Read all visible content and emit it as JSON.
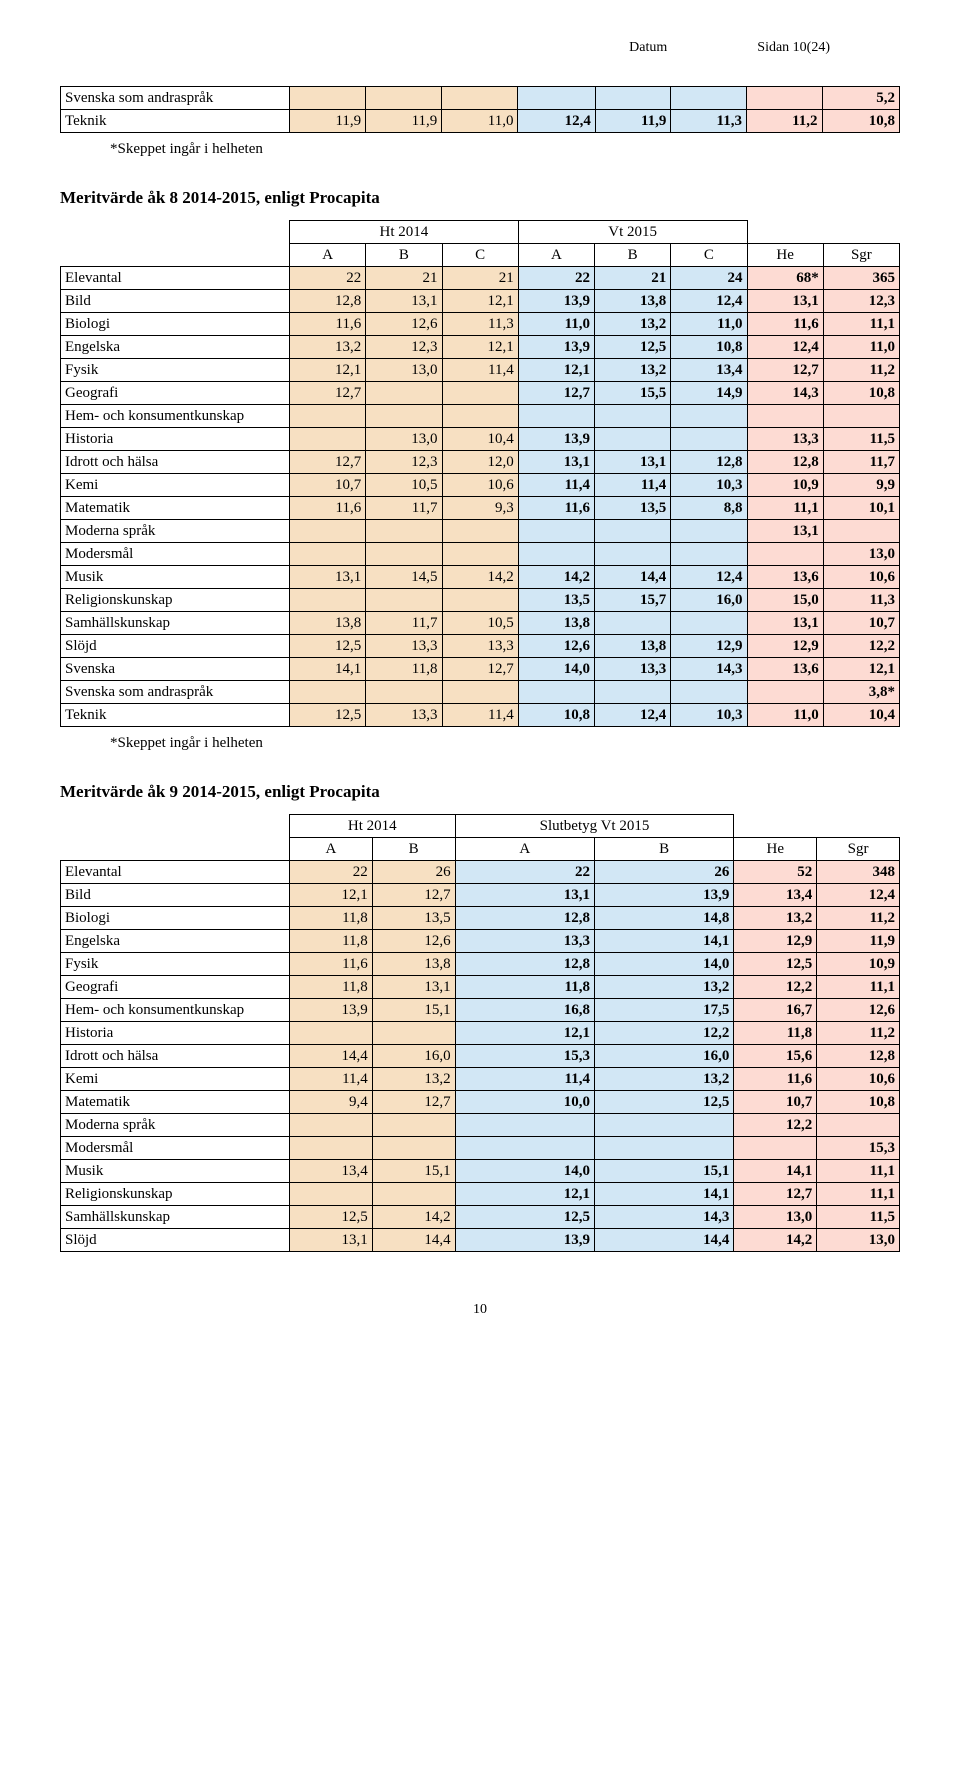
{
  "header": {
    "left": "Datum",
    "right": "Sidan 10(24)"
  },
  "colors": {
    "tan": "#f7e0c2",
    "blue": "#d2e7f5",
    "pink": "#fddbd3",
    "white": "#ffffff"
  },
  "table1": {
    "rows": [
      {
        "label": "Svenska som andraspråk",
        "cells": [
          "",
          "",
          "",
          "",
          "",
          "",
          "",
          "5,2"
        ],
        "bold": [
          0,
          0,
          0,
          0,
          0,
          0,
          1,
          1
        ],
        "fills": [
          "tan",
          "tan",
          "tan",
          "blue",
          "blue",
          "blue",
          "pink",
          "pink"
        ]
      },
      {
        "label": "Teknik",
        "cells": [
          "11,9",
          "11,9",
          "11,0",
          "12,4",
          "11,9",
          "11,3",
          "11,2",
          "10,8"
        ],
        "bold": [
          0,
          0,
          0,
          1,
          1,
          1,
          1,
          1
        ],
        "fills": [
          "tan",
          "tan",
          "tan",
          "blue",
          "blue",
          "blue",
          "pink",
          "pink"
        ]
      }
    ],
    "footnote": "*Skeppet ingår i helheten"
  },
  "section2": {
    "title": "Meritvärde åk 8 2014-2015, enligt Procapita",
    "groupHeaders": {
      "g1": "Ht 2014",
      "g2": "Vt 2015"
    },
    "colHeaders": [
      "",
      "A",
      "B",
      "C",
      "A",
      "B",
      "C",
      "He",
      "Sgr"
    ],
    "rows": [
      {
        "label": "Elevantal",
        "cells": [
          "22",
          "21",
          "21",
          "22",
          "21",
          "24",
          "68*",
          "365"
        ],
        "bold": [
          0,
          0,
          0,
          1,
          1,
          1,
          1,
          1
        ],
        "fills": [
          "tan",
          "tan",
          "tan",
          "blue",
          "blue",
          "blue",
          "pink",
          "pink"
        ]
      },
      {
        "label": "Bild",
        "cells": [
          "12,8",
          "13,1",
          "12,1",
          "13,9",
          "13,8",
          "12,4",
          "13,1",
          "12,3"
        ],
        "bold": [
          0,
          0,
          0,
          1,
          1,
          1,
          1,
          1
        ],
        "fills": [
          "tan",
          "tan",
          "tan",
          "blue",
          "blue",
          "blue",
          "pink",
          "pink"
        ]
      },
      {
        "label": "Biologi",
        "cells": [
          "11,6",
          "12,6",
          "11,3",
          "11,0",
          "13,2",
          "11,0",
          "11,6",
          "11,1"
        ],
        "bold": [
          0,
          0,
          0,
          1,
          1,
          1,
          1,
          1
        ],
        "fills": [
          "tan",
          "tan",
          "tan",
          "blue",
          "blue",
          "blue",
          "pink",
          "pink"
        ]
      },
      {
        "label": "Engelska",
        "cells": [
          "13,2",
          "12,3",
          "12,1",
          "13,9",
          "12,5",
          "10,8",
          "12,4",
          "11,0"
        ],
        "bold": [
          0,
          0,
          0,
          1,
          1,
          1,
          1,
          1
        ],
        "fills": [
          "tan",
          "tan",
          "tan",
          "blue",
          "blue",
          "blue",
          "pink",
          "pink"
        ]
      },
      {
        "label": "Fysik",
        "cells": [
          "12,1",
          "13,0",
          "11,4",
          "12,1",
          "13,2",
          "13,4",
          "12,7",
          "11,2"
        ],
        "bold": [
          0,
          0,
          0,
          1,
          1,
          1,
          1,
          1
        ],
        "fills": [
          "tan",
          "tan",
          "tan",
          "blue",
          "blue",
          "blue",
          "pink",
          "pink"
        ]
      },
      {
        "label": "Geografi",
        "cells": [
          "12,7",
          "",
          "",
          "12,7",
          "15,5",
          "14,9",
          "14,3",
          "10,8"
        ],
        "bold": [
          0,
          0,
          0,
          1,
          1,
          1,
          1,
          1
        ],
        "fills": [
          "tan",
          "tan",
          "tan",
          "blue",
          "blue",
          "blue",
          "pink",
          "pink"
        ]
      },
      {
        "label": "Hem- och konsumentkunskap",
        "cells": [
          "",
          "",
          "",
          "",
          "",
          "",
          "",
          ""
        ],
        "bold": [
          0,
          0,
          0,
          0,
          0,
          0,
          0,
          0
        ],
        "fills": [
          "tan",
          "tan",
          "tan",
          "blue",
          "blue",
          "blue",
          "pink",
          "pink"
        ]
      },
      {
        "label": "Historia",
        "cells": [
          "",
          "13,0",
          "10,4",
          "13,9",
          "",
          "",
          "13,3",
          "11,5"
        ],
        "bold": [
          0,
          0,
          0,
          1,
          0,
          0,
          1,
          1
        ],
        "fills": [
          "tan",
          "tan",
          "tan",
          "blue",
          "blue",
          "blue",
          "pink",
          "pink"
        ]
      },
      {
        "label": "Idrott och hälsa",
        "cells": [
          "12,7",
          "12,3",
          "12,0",
          "13,1",
          "13,1",
          "12,8",
          "12,8",
          "11,7"
        ],
        "bold": [
          0,
          0,
          0,
          1,
          1,
          1,
          1,
          1
        ],
        "fills": [
          "tan",
          "tan",
          "tan",
          "blue",
          "blue",
          "blue",
          "pink",
          "pink"
        ]
      },
      {
        "label": "Kemi",
        "cells": [
          "10,7",
          "10,5",
          "10,6",
          "11,4",
          "11,4",
          "10,3",
          "10,9",
          "9,9"
        ],
        "bold": [
          0,
          0,
          0,
          1,
          1,
          1,
          1,
          1
        ],
        "fills": [
          "tan",
          "tan",
          "tan",
          "blue",
          "blue",
          "blue",
          "pink",
          "pink"
        ]
      },
      {
        "label": "Matematik",
        "cells": [
          "11,6",
          "11,7",
          "9,3",
          "11,6",
          "13,5",
          "8,8",
          "11,1",
          "10,1"
        ],
        "bold": [
          0,
          0,
          0,
          1,
          1,
          1,
          1,
          1
        ],
        "fills": [
          "tan",
          "tan",
          "tan",
          "blue",
          "blue",
          "blue",
          "pink",
          "pink"
        ]
      },
      {
        "label": "Moderna språk",
        "cells": [
          "",
          "",
          "",
          "",
          "",
          "",
          "13,1",
          ""
        ],
        "bold": [
          0,
          0,
          0,
          0,
          0,
          0,
          1,
          0
        ],
        "fills": [
          "tan",
          "tan",
          "tan",
          "blue",
          "blue",
          "blue",
          "pink",
          "pink"
        ]
      },
      {
        "label": "Modersmål",
        "cells": [
          "",
          "",
          "",
          "",
          "",
          "",
          "",
          "13,0"
        ],
        "bold": [
          0,
          0,
          0,
          0,
          0,
          0,
          0,
          1
        ],
        "fills": [
          "tan",
          "tan",
          "tan",
          "blue",
          "blue",
          "blue",
          "pink",
          "pink"
        ]
      },
      {
        "label": "Musik",
        "cells": [
          "13,1",
          "14,5",
          "14,2",
          "14,2",
          "14,4",
          "12,4",
          "13,6",
          "10,6"
        ],
        "bold": [
          0,
          0,
          0,
          1,
          1,
          1,
          1,
          1
        ],
        "fills": [
          "tan",
          "tan",
          "tan",
          "blue",
          "blue",
          "blue",
          "pink",
          "pink"
        ]
      },
      {
        "label": "Religionskunskap",
        "cells": [
          "",
          "",
          "",
          "13,5",
          "15,7",
          "16,0",
          "15,0",
          "11,3"
        ],
        "bold": [
          0,
          0,
          0,
          1,
          1,
          1,
          1,
          1
        ],
        "fills": [
          "tan",
          "tan",
          "tan",
          "blue",
          "blue",
          "blue",
          "pink",
          "pink"
        ]
      },
      {
        "label": "Samhällskunskap",
        "cells": [
          "13,8",
          "11,7",
          "10,5",
          "13,8",
          "",
          "",
          "13,1",
          "10,7"
        ],
        "bold": [
          0,
          0,
          0,
          1,
          0,
          0,
          1,
          1
        ],
        "fills": [
          "tan",
          "tan",
          "tan",
          "blue",
          "blue",
          "blue",
          "pink",
          "pink"
        ]
      },
      {
        "label": "Slöjd",
        "cells": [
          "12,5",
          "13,3",
          "13,3",
          "12,6",
          "13,8",
          "12,9",
          "12,9",
          "12,2"
        ],
        "bold": [
          0,
          0,
          0,
          1,
          1,
          1,
          1,
          1
        ],
        "fills": [
          "tan",
          "tan",
          "tan",
          "blue",
          "blue",
          "blue",
          "pink",
          "pink"
        ]
      },
      {
        "label": "Svenska",
        "cells": [
          "14,1",
          "11,8",
          "12,7",
          "14,0",
          "13,3",
          "14,3",
          "13,6",
          "12,1"
        ],
        "bold": [
          0,
          0,
          0,
          1,
          1,
          1,
          1,
          1
        ],
        "fills": [
          "tan",
          "tan",
          "tan",
          "blue",
          "blue",
          "blue",
          "pink",
          "pink"
        ]
      },
      {
        "label": "Svenska som andraspråk",
        "cells": [
          "",
          "",
          "",
          "",
          "",
          "",
          "",
          "3,8*"
        ],
        "bold": [
          0,
          0,
          0,
          0,
          0,
          0,
          0,
          1
        ],
        "fills": [
          "tan",
          "tan",
          "tan",
          "blue",
          "blue",
          "blue",
          "pink",
          "pink"
        ]
      },
      {
        "label": "Teknik",
        "cells": [
          "12,5",
          "13,3",
          "11,4",
          "10,8",
          "12,4",
          "10,3",
          "11,0",
          "10,4"
        ],
        "bold": [
          0,
          0,
          0,
          1,
          1,
          1,
          1,
          1
        ],
        "fills": [
          "tan",
          "tan",
          "tan",
          "blue",
          "blue",
          "blue",
          "pink",
          "pink"
        ]
      }
    ],
    "footnote": "*Skeppet ingår i helheten"
  },
  "section3": {
    "title": "Meritvärde åk 9 2014-2015, enligt Procapita",
    "groupHeaders": {
      "g1": "Ht 2014",
      "g2": "Slutbetyg Vt 2015"
    },
    "colHeaders": [
      "",
      "A",
      "B",
      "A",
      "B",
      "He",
      "Sgr"
    ],
    "rows": [
      {
        "label": "Elevantal",
        "cells": [
          "22",
          "26",
          "22",
          "26",
          "52",
          "348"
        ],
        "bold": [
          0,
          0,
          1,
          1,
          1,
          1
        ],
        "fills": [
          "tan",
          "tan",
          "blue",
          "blue",
          "pink",
          "pink"
        ]
      },
      {
        "label": "Bild",
        "cells": [
          "12,1",
          "12,7",
          "13,1",
          "13,9",
          "13,4",
          "12,4"
        ],
        "bold": [
          0,
          0,
          1,
          1,
          1,
          1
        ],
        "fills": [
          "tan",
          "tan",
          "blue",
          "blue",
          "pink",
          "pink"
        ]
      },
      {
        "label": "Biologi",
        "cells": [
          "11,8",
          "13,5",
          "12,8",
          "14,8",
          "13,2",
          "11,2"
        ],
        "bold": [
          0,
          0,
          1,
          1,
          1,
          1
        ],
        "fills": [
          "tan",
          "tan",
          "blue",
          "blue",
          "pink",
          "pink"
        ]
      },
      {
        "label": "Engelska",
        "cells": [
          "11,8",
          "12,6",
          "13,3",
          "14,1",
          "12,9",
          "11,9"
        ],
        "bold": [
          0,
          0,
          1,
          1,
          1,
          1
        ],
        "fills": [
          "tan",
          "tan",
          "blue",
          "blue",
          "pink",
          "pink"
        ]
      },
      {
        "label": "Fysik",
        "cells": [
          "11,6",
          "13,8",
          "12,8",
          "14,0",
          "12,5",
          "10,9"
        ],
        "bold": [
          0,
          0,
          1,
          1,
          1,
          1
        ],
        "fills": [
          "tan",
          "tan",
          "blue",
          "blue",
          "pink",
          "pink"
        ]
      },
      {
        "label": "Geografi",
        "cells": [
          "11,8",
          "13,1",
          "11,8",
          "13,2",
          "12,2",
          "11,1"
        ],
        "bold": [
          0,
          0,
          1,
          1,
          1,
          1
        ],
        "fills": [
          "tan",
          "tan",
          "blue",
          "blue",
          "pink",
          "pink"
        ]
      },
      {
        "label": "Hem- och konsumentkunskap",
        "cells": [
          "13,9",
          "15,1",
          "16,8",
          "17,5",
          "16,7",
          "12,6"
        ],
        "bold": [
          0,
          0,
          1,
          1,
          1,
          1
        ],
        "fills": [
          "tan",
          "tan",
          "blue",
          "blue",
          "pink",
          "pink"
        ]
      },
      {
        "label": "Historia",
        "cells": [
          "",
          "",
          "12,1",
          "12,2",
          "11,8",
          "11,2"
        ],
        "bold": [
          0,
          0,
          1,
          1,
          1,
          1
        ],
        "fills": [
          "tan",
          "tan",
          "blue",
          "blue",
          "pink",
          "pink"
        ]
      },
      {
        "label": "Idrott och hälsa",
        "cells": [
          "14,4",
          "16,0",
          "15,3",
          "16,0",
          "15,6",
          "12,8"
        ],
        "bold": [
          0,
          0,
          1,
          1,
          1,
          1
        ],
        "fills": [
          "tan",
          "tan",
          "blue",
          "blue",
          "pink",
          "pink"
        ]
      },
      {
        "label": "Kemi",
        "cells": [
          "11,4",
          "13,2",
          "11,4",
          "13,2",
          "11,6",
          "10,6"
        ],
        "bold": [
          0,
          0,
          1,
          1,
          1,
          1
        ],
        "fills": [
          "tan",
          "tan",
          "blue",
          "blue",
          "pink",
          "pink"
        ]
      },
      {
        "label": "Matematik",
        "cells": [
          "9,4",
          "12,7",
          "10,0",
          "12,5",
          "10,7",
          "10,8"
        ],
        "bold": [
          0,
          0,
          1,
          1,
          1,
          1
        ],
        "fills": [
          "tan",
          "tan",
          "blue",
          "blue",
          "pink",
          "pink"
        ]
      },
      {
        "label": "Moderna språk",
        "cells": [
          "",
          "",
          "",
          "",
          "12,2",
          ""
        ],
        "bold": [
          0,
          0,
          0,
          0,
          1,
          0
        ],
        "fills": [
          "tan",
          "tan",
          "blue",
          "blue",
          "pink",
          "pink"
        ]
      },
      {
        "label": "Modersmål",
        "cells": [
          "",
          "",
          "",
          "",
          "",
          "15,3"
        ],
        "bold": [
          0,
          0,
          0,
          0,
          0,
          1
        ],
        "fills": [
          "tan",
          "tan",
          "blue",
          "blue",
          "pink",
          "pink"
        ]
      },
      {
        "label": "Musik",
        "cells": [
          "13,4",
          "15,1",
          "14,0",
          "15,1",
          "14,1",
          "11,1"
        ],
        "bold": [
          0,
          0,
          1,
          1,
          1,
          1
        ],
        "fills": [
          "tan",
          "tan",
          "blue",
          "blue",
          "pink",
          "pink"
        ]
      },
      {
        "label": "Religionskunskap",
        "cells": [
          "",
          "",
          "12,1",
          "14,1",
          "12,7",
          "11,1"
        ],
        "bold": [
          0,
          0,
          1,
          1,
          1,
          1
        ],
        "fills": [
          "tan",
          "tan",
          "blue",
          "blue",
          "pink",
          "pink"
        ]
      },
      {
        "label": "Samhällskunskap",
        "cells": [
          "12,5",
          "14,2",
          "12,5",
          "14,3",
          "13,0",
          "11,5"
        ],
        "bold": [
          0,
          0,
          1,
          1,
          1,
          1
        ],
        "fills": [
          "tan",
          "tan",
          "blue",
          "blue",
          "pink",
          "pink"
        ]
      },
      {
        "label": "Slöjd",
        "cells": [
          "13,1",
          "14,4",
          "13,9",
          "14,4",
          "14,2",
          "13,0"
        ],
        "bold": [
          0,
          0,
          1,
          1,
          1,
          1
        ],
        "fills": [
          "tan",
          "tan",
          "blue",
          "blue",
          "pink",
          "pink"
        ]
      }
    ]
  },
  "pagenum": "10"
}
